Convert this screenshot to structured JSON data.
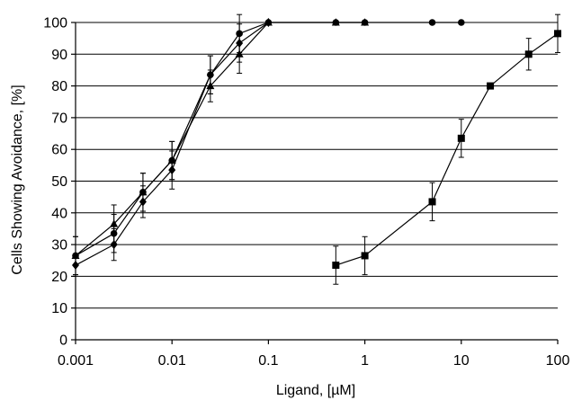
{
  "chart_data": {
    "type": "line",
    "title": "",
    "xlabel": "Ligand, [µM]",
    "ylabel": "Cells Showing Avoidance, [%]",
    "xscale": "log",
    "xlim": [
      0.001,
      100
    ],
    "ylim": [
      0,
      100
    ],
    "x_ticks": [
      "0.001",
      "0.01",
      "0.1",
      "1",
      "10",
      "100"
    ],
    "y_ticks": [
      "0",
      "10",
      "20",
      "30",
      "40",
      "50",
      "60",
      "70",
      "80",
      "90",
      "100"
    ],
    "grid": "horizontal",
    "legend": "none",
    "series": [
      {
        "marker": "triangle",
        "x": [
          0.001,
          0.0025,
          0.005,
          0.01,
          0.025,
          0.05,
          0.1,
          0.5,
          1
        ],
        "y": [
          26.5,
          36.5,
          46.5,
          56.5,
          80,
          90,
          100,
          100,
          100
        ],
        "err": [
          6,
          6,
          6,
          6,
          5,
          6,
          0,
          0,
          0
        ]
      },
      {
        "marker": "circle",
        "x": [
          0.001,
          0.0025,
          0.005,
          0.01,
          0.025,
          0.05,
          0.1,
          0.5,
          1,
          5,
          10
        ],
        "y": [
          26.5,
          33.5,
          46.5,
          56.5,
          83.5,
          96.5,
          100,
          100,
          100,
          100,
          100
        ],
        "err": [
          6,
          6,
          6,
          6,
          6,
          6,
          0,
          0,
          0,
          0,
          0
        ]
      },
      {
        "marker": "diamond",
        "x": [
          0.001,
          0.0025,
          0.005,
          0.01,
          0.025,
          0.05,
          0.1
        ],
        "y": [
          23.5,
          30,
          43.5,
          53.5,
          83.5,
          93.5,
          100
        ],
        "err": [
          0,
          5,
          5,
          6,
          6,
          6,
          0
        ]
      },
      {
        "marker": "square",
        "x": [
          0.5,
          1,
          5,
          10,
          20,
          50,
          100
        ],
        "y": [
          23.5,
          26.5,
          43.5,
          63.5,
          80,
          90,
          96.5
        ],
        "err": [
          6,
          6,
          6,
          6,
          0,
          5,
          6
        ]
      }
    ]
  }
}
